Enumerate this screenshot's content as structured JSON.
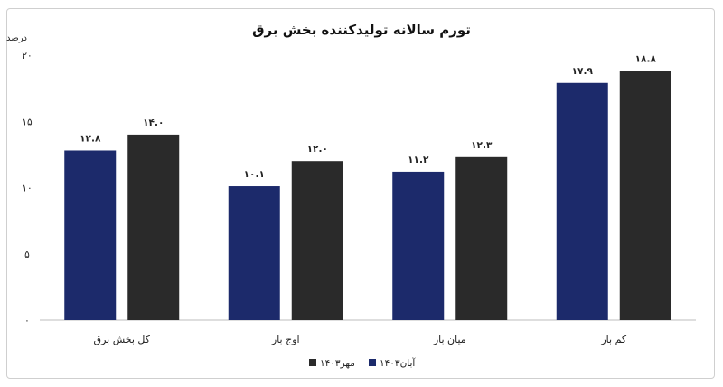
{
  "chart_data": {
    "type": "bar",
    "title": "تورم سالانه تولیدکننده بخش برق",
    "ylabel": "درصد",
    "xlabel": "",
    "ylim": [
      0,
      20
    ],
    "yticks": [
      "۰",
      "۵",
      "۱۰",
      "۱۵",
      "۲۰"
    ],
    "ytick_values": [
      0,
      5,
      10,
      15,
      20
    ],
    "grid": false,
    "legend_position": "bottom",
    "categories": [
      "کل بخش برق",
      "اوج بار",
      "میان بار",
      "کم بار"
    ],
    "series": [
      {
        "name": "آبان۱۴۰۳",
        "color": "#1c2a6b",
        "values": [
          12.8,
          10.1,
          11.2,
          17.9
        ],
        "labels": [
          "۱۲.۸",
          "۱۰.۱",
          "۱۱.۲",
          "۱۷.۹"
        ]
      },
      {
        "name": "مهر۱۴۰۳",
        "color": "#2a2a2a",
        "values": [
          14.0,
          12.0,
          12.3,
          18.8
        ],
        "labels": [
          "۱۴.۰",
          "۱۲.۰",
          "۱۲.۳",
          "۱۸.۸"
        ]
      }
    ]
  }
}
